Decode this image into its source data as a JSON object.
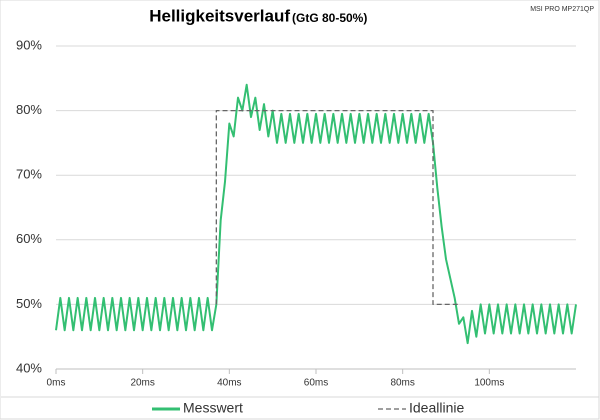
{
  "chart_data": {
    "type": "line",
    "title": "Helligkeitsverlauf",
    "subtitle": "(GtG 80-50%)",
    "corner_note": "MSI PRO MP271QP",
    "xlim": [
      0,
      120
    ],
    "ylim": [
      40,
      90
    ],
    "xticks": [
      {
        "value": 0,
        "label": "0ms"
      },
      {
        "value": 20,
        "label": "20ms"
      },
      {
        "value": 40,
        "label": "40ms"
      },
      {
        "value": 60,
        "label": "60ms"
      },
      {
        "value": 80,
        "label": "80ms"
      },
      {
        "value": 100,
        "label": "100ms"
      }
    ],
    "yticks": [
      {
        "value": 40,
        "label": "40%"
      },
      {
        "value": 50,
        "label": "50%"
      },
      {
        "value": 60,
        "label": "60%"
      },
      {
        "value": 70,
        "label": "70%"
      },
      {
        "value": 80,
        "label": "80%"
      },
      {
        "value": 90,
        "label": "90%"
      }
    ],
    "grid": true,
    "legend": "bottom",
    "series": [
      {
        "name": "Messwert",
        "color": "#33bf72",
        "dashed": false,
        "x": [
          0,
          1,
          2,
          3,
          4,
          5,
          6,
          7,
          8,
          9,
          10,
          11,
          12,
          13,
          14,
          15,
          16,
          17,
          18,
          19,
          20,
          21,
          22,
          23,
          24,
          25,
          26,
          27,
          28,
          29,
          30,
          31,
          32,
          33,
          34,
          35,
          36,
          37,
          38,
          39,
          40,
          41,
          42,
          43,
          44,
          45,
          46,
          47,
          48,
          49,
          50,
          51,
          52,
          53,
          54,
          55,
          56,
          57,
          58,
          59,
          60,
          61,
          62,
          63,
          64,
          65,
          66,
          67,
          68,
          69,
          70,
          71,
          72,
          73,
          74,
          75,
          76,
          77,
          78,
          79,
          80,
          81,
          82,
          83,
          84,
          85,
          86,
          87,
          88,
          89,
          90,
          91,
          92,
          93,
          94,
          95,
          96,
          97,
          98,
          99,
          100,
          101,
          102,
          103,
          104,
          105,
          106,
          107,
          108,
          109,
          110,
          111,
          112,
          113,
          114,
          115,
          116,
          117,
          118,
          119,
          120
        ],
        "values": [
          46,
          51,
          46,
          51,
          46,
          51,
          46,
          51,
          46,
          51,
          46,
          51,
          46,
          51,
          46,
          51,
          46,
          51,
          46,
          51,
          46,
          51,
          46,
          51,
          46,
          51,
          46,
          51,
          46,
          51,
          46,
          51,
          46,
          51,
          46,
          51,
          46,
          50,
          63,
          69,
          78,
          76,
          82,
          80,
          84,
          79,
          82,
          77,
          81,
          76,
          80,
          75,
          79.5,
          75,
          79.5,
          75,
          79.5,
          75,
          79.5,
          75,
          79.5,
          75,
          79.5,
          75,
          79.5,
          75,
          79.5,
          75,
          79.5,
          75,
          79.5,
          75,
          79.5,
          75,
          79.5,
          75,
          79.5,
          75,
          79.5,
          75,
          79.5,
          75,
          79.5,
          75,
          79.5,
          75,
          79.5,
          75,
          68,
          62,
          57,
          54,
          51,
          47,
          48,
          44,
          49,
          45,
          50,
          45.5,
          50,
          45.5,
          50,
          45.5,
          50,
          45.5,
          50,
          45.5,
          50,
          45.5,
          50,
          45.5,
          50,
          45.5,
          50,
          45.5,
          50,
          45.5,
          50,
          45.5,
          50
        ]
      },
      {
        "name": "Ideallinie",
        "color": "#666666",
        "dashed": true,
        "x": [
          37,
          37,
          87,
          87,
          93
        ],
        "values": [
          50,
          80,
          80,
          50,
          50
        ]
      }
    ]
  }
}
